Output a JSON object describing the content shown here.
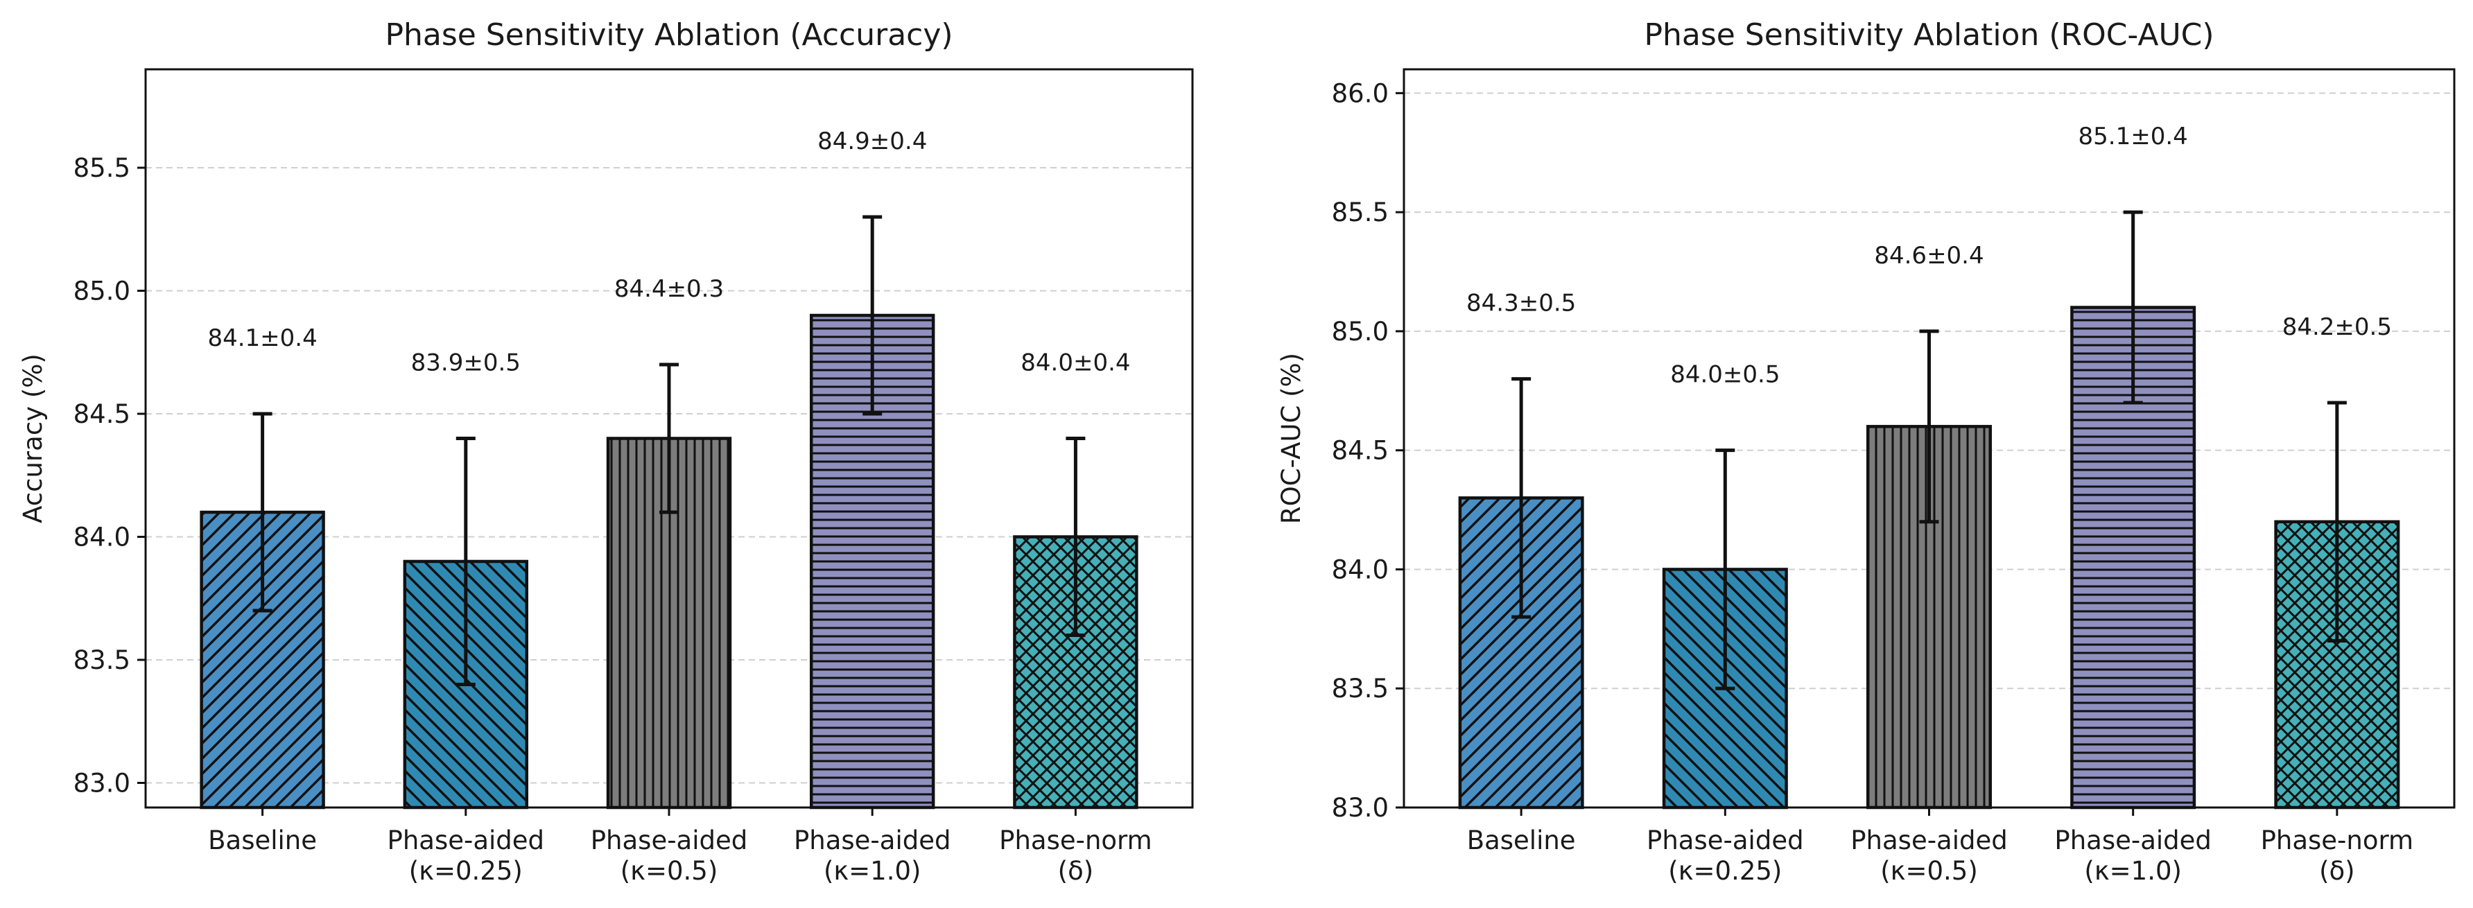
{
  "chart_data": [
    {
      "type": "bar",
      "title": "Phase Sensitivity Ablation (Accuracy)",
      "xlabel": "",
      "ylabel": "Accuracy (%)",
      "ylim": [
        82.9,
        85.9
      ],
      "yticks": [
        "83.0",
        "83.5",
        "84.0",
        "84.5",
        "85.0",
        "85.5"
      ],
      "categories": [
        [
          "Baseline"
        ],
        [
          "Phase-aided",
          "(κ=0.25)"
        ],
        [
          "Phase-aided",
          "(κ=0.5)"
        ],
        [
          "Phase-aided",
          "(κ=1.0)"
        ],
        [
          "Phase-norm",
          "(δ)"
        ]
      ],
      "values": [
        84.1,
        83.9,
        84.4,
        84.9,
        84.0
      ],
      "errors": [
        0.4,
        0.5,
        0.3,
        0.4,
        0.4
      ],
      "labels": [
        "84.1±0.4",
        "83.9±0.5",
        "84.4±0.3",
        "84.9±0.4",
        "84.0±0.4"
      ],
      "colors": [
        "#4a8fc4",
        "#2f8ab3",
        "#7d7d7d",
        "#9090c0",
        "#45b0b8"
      ],
      "hatches": [
        "diag-up",
        "diag-down",
        "vertical",
        "horizontal",
        "cross"
      ],
      "grid": true
    },
    {
      "type": "bar",
      "title": "Phase Sensitivity Ablation (ROC-AUC)",
      "xlabel": "",
      "ylabel": "ROC-AUC (%)",
      "ylim": [
        83.0,
        86.1
      ],
      "yticks": [
        "83.0",
        "83.5",
        "84.0",
        "84.5",
        "85.0",
        "85.5",
        "86.0"
      ],
      "categories": [
        [
          "Baseline"
        ],
        [
          "Phase-aided",
          "(κ=0.25)"
        ],
        [
          "Phase-aided",
          "(κ=0.5)"
        ],
        [
          "Phase-aided",
          "(κ=1.0)"
        ],
        [
          "Phase-norm",
          "(δ)"
        ]
      ],
      "values": [
        84.3,
        84.0,
        84.6,
        85.1,
        84.2
      ],
      "errors": [
        0.5,
        0.5,
        0.4,
        0.4,
        0.5
      ],
      "labels": [
        "84.3±0.5",
        "84.0±0.5",
        "84.6±0.4",
        "85.1±0.4",
        "84.2±0.5"
      ],
      "colors": [
        "#4a8fc4",
        "#2f8ab3",
        "#7d7d7d",
        "#9090c0",
        "#45b0b8"
      ],
      "hatches": [
        "diag-up",
        "diag-down",
        "vertical",
        "horizontal",
        "cross"
      ],
      "grid": true
    }
  ]
}
